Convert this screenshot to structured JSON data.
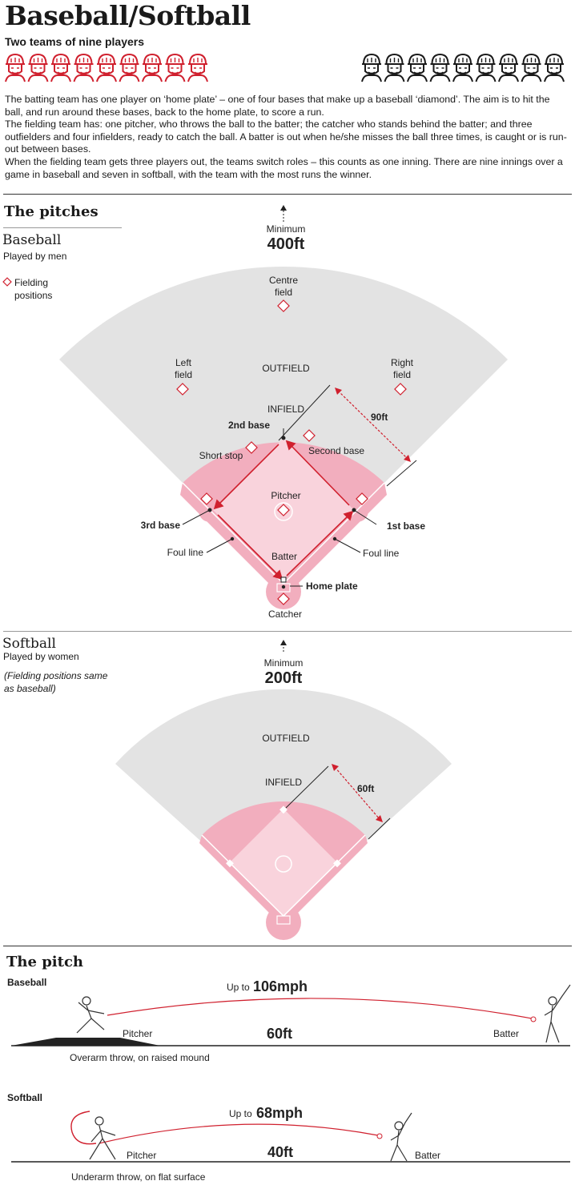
{
  "header": {
    "title": "Baseball/Softball",
    "subtitle": "Two teams of nine players",
    "team_a_color": "#d0202e",
    "team_b_color": "#1a1a1a",
    "players_per_team": 9
  },
  "intro": [
    "The batting team has one player on ‘home plate’ – one of four bases that make up a baseball ‘diamond’. The aim is to hit the ball, and run around these bases, back to the home plate, to score a run.",
    "The fielding team has: one pitcher, who throws the ball to the batter; the catcher who stands behind the batter; and three outfielders and four infielders, ready to catch the ball. A batter is out when he/she misses the ball three times, is caught or is run-out between bases.",
    "When the fielding team gets three players out, the teams switch roles – this counts as one inning. There are nine innings over a game in baseball and seven in softball, with the team with the most runs the winner."
  ],
  "pitches": {
    "section_title": "The pitches",
    "colors": {
      "outfield": "#e3e3e3",
      "infield": "#f2aebe",
      "diamond": "#f9d3dc",
      "accent": "#d0202e"
    },
    "baseball": {
      "title": "Baseball",
      "subtitle": "Played by men",
      "legend": [
        "Fielding",
        "positions"
      ],
      "min_label": "Minimum",
      "min_distance": "400ft",
      "outfield": "OUTFIELD",
      "infield": "INFIELD",
      "base_distance": "90ft",
      "centre_field": [
        "Centre",
        "field"
      ],
      "left_field": [
        "Left",
        "field"
      ],
      "right_field": [
        "Right",
        "field"
      ],
      "second_base_pos": "Second base",
      "short_stop": "Short stop",
      "pitcher": "Pitcher",
      "batter": "Batter",
      "catcher": "Catcher",
      "base_2nd": "2nd base",
      "base_3rd": "3rd base",
      "base_1st": "1st base",
      "home_plate": "Home plate",
      "foul_line_left": "Foul line",
      "foul_line_right": "Foul line"
    },
    "softball": {
      "title": "Softball",
      "subtitle": "Played by women",
      "note": [
        "(Fielding positions same",
        "as baseball)"
      ],
      "min_label": "Minimum",
      "min_distance": "200ft",
      "outfield": "OUTFIELD",
      "infield": "INFIELD",
      "base_distance": "60ft"
    }
  },
  "pitch": {
    "section_title": "The pitch",
    "baseball": {
      "label": "Baseball",
      "speed_prefix": "Up to",
      "speed": "106mph",
      "distance": "60ft",
      "pitcher": "Pitcher",
      "batter": "Batter",
      "caption": "Overarm throw, on raised mound"
    },
    "softball": {
      "label": "Softball",
      "speed_prefix": "Up to",
      "speed": "68mph",
      "distance": "40ft",
      "pitcher": "Pitcher",
      "batter": "Batter",
      "caption": "Underarm throw, on flat surface"
    }
  }
}
